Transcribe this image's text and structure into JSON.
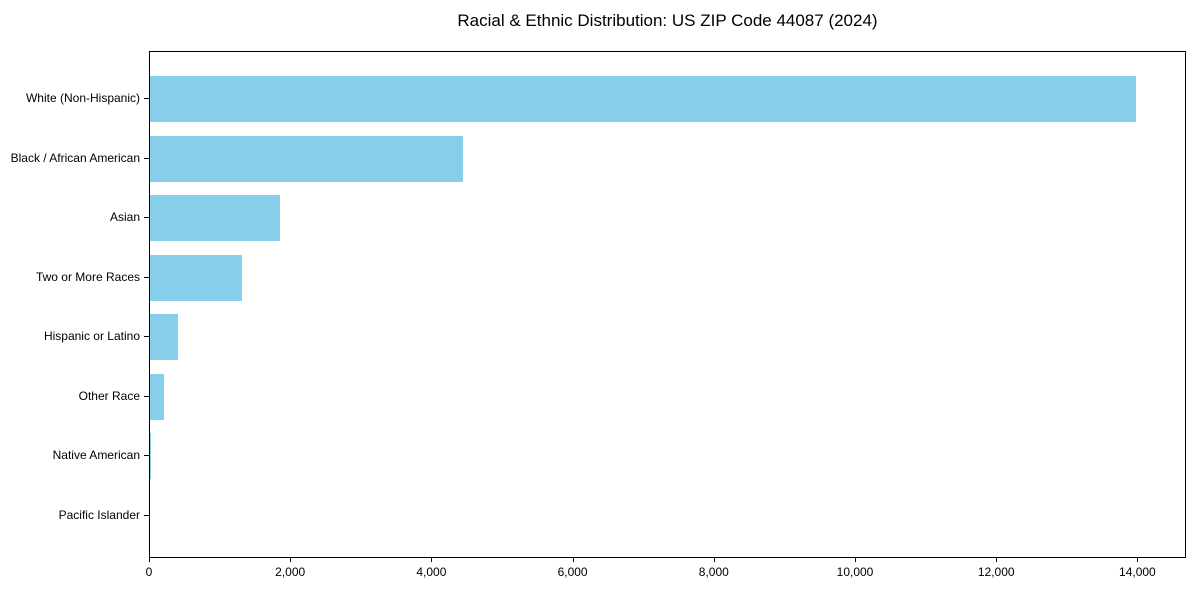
{
  "chart_data": {
    "type": "bar",
    "orientation": "horizontal",
    "title": "Racial & Ethnic Distribution: US ZIP Code 44087 (2024)",
    "categories": [
      "White (Non-Hispanic)",
      "Black / African American",
      "Asian",
      "Two or More Races",
      "Hispanic or Latino",
      "Other Race",
      "Native American",
      "Pacific Islander"
    ],
    "values": [
      13960,
      4430,
      1840,
      1300,
      400,
      200,
      15,
      0
    ],
    "xlabel": "",
    "ylabel": "",
    "xlim": [
      0,
      14660
    ],
    "x_ticks": [
      0,
      2000,
      4000,
      6000,
      8000,
      10000,
      12000,
      14000
    ],
    "x_tick_labels": [
      "0",
      "2,000",
      "4,000",
      "6,000",
      "8,000",
      "10,000",
      "12,000",
      "14,000"
    ],
    "bar_color": "#87CEEB",
    "frame_color": "#000000",
    "grid": false,
    "legend": null
  }
}
